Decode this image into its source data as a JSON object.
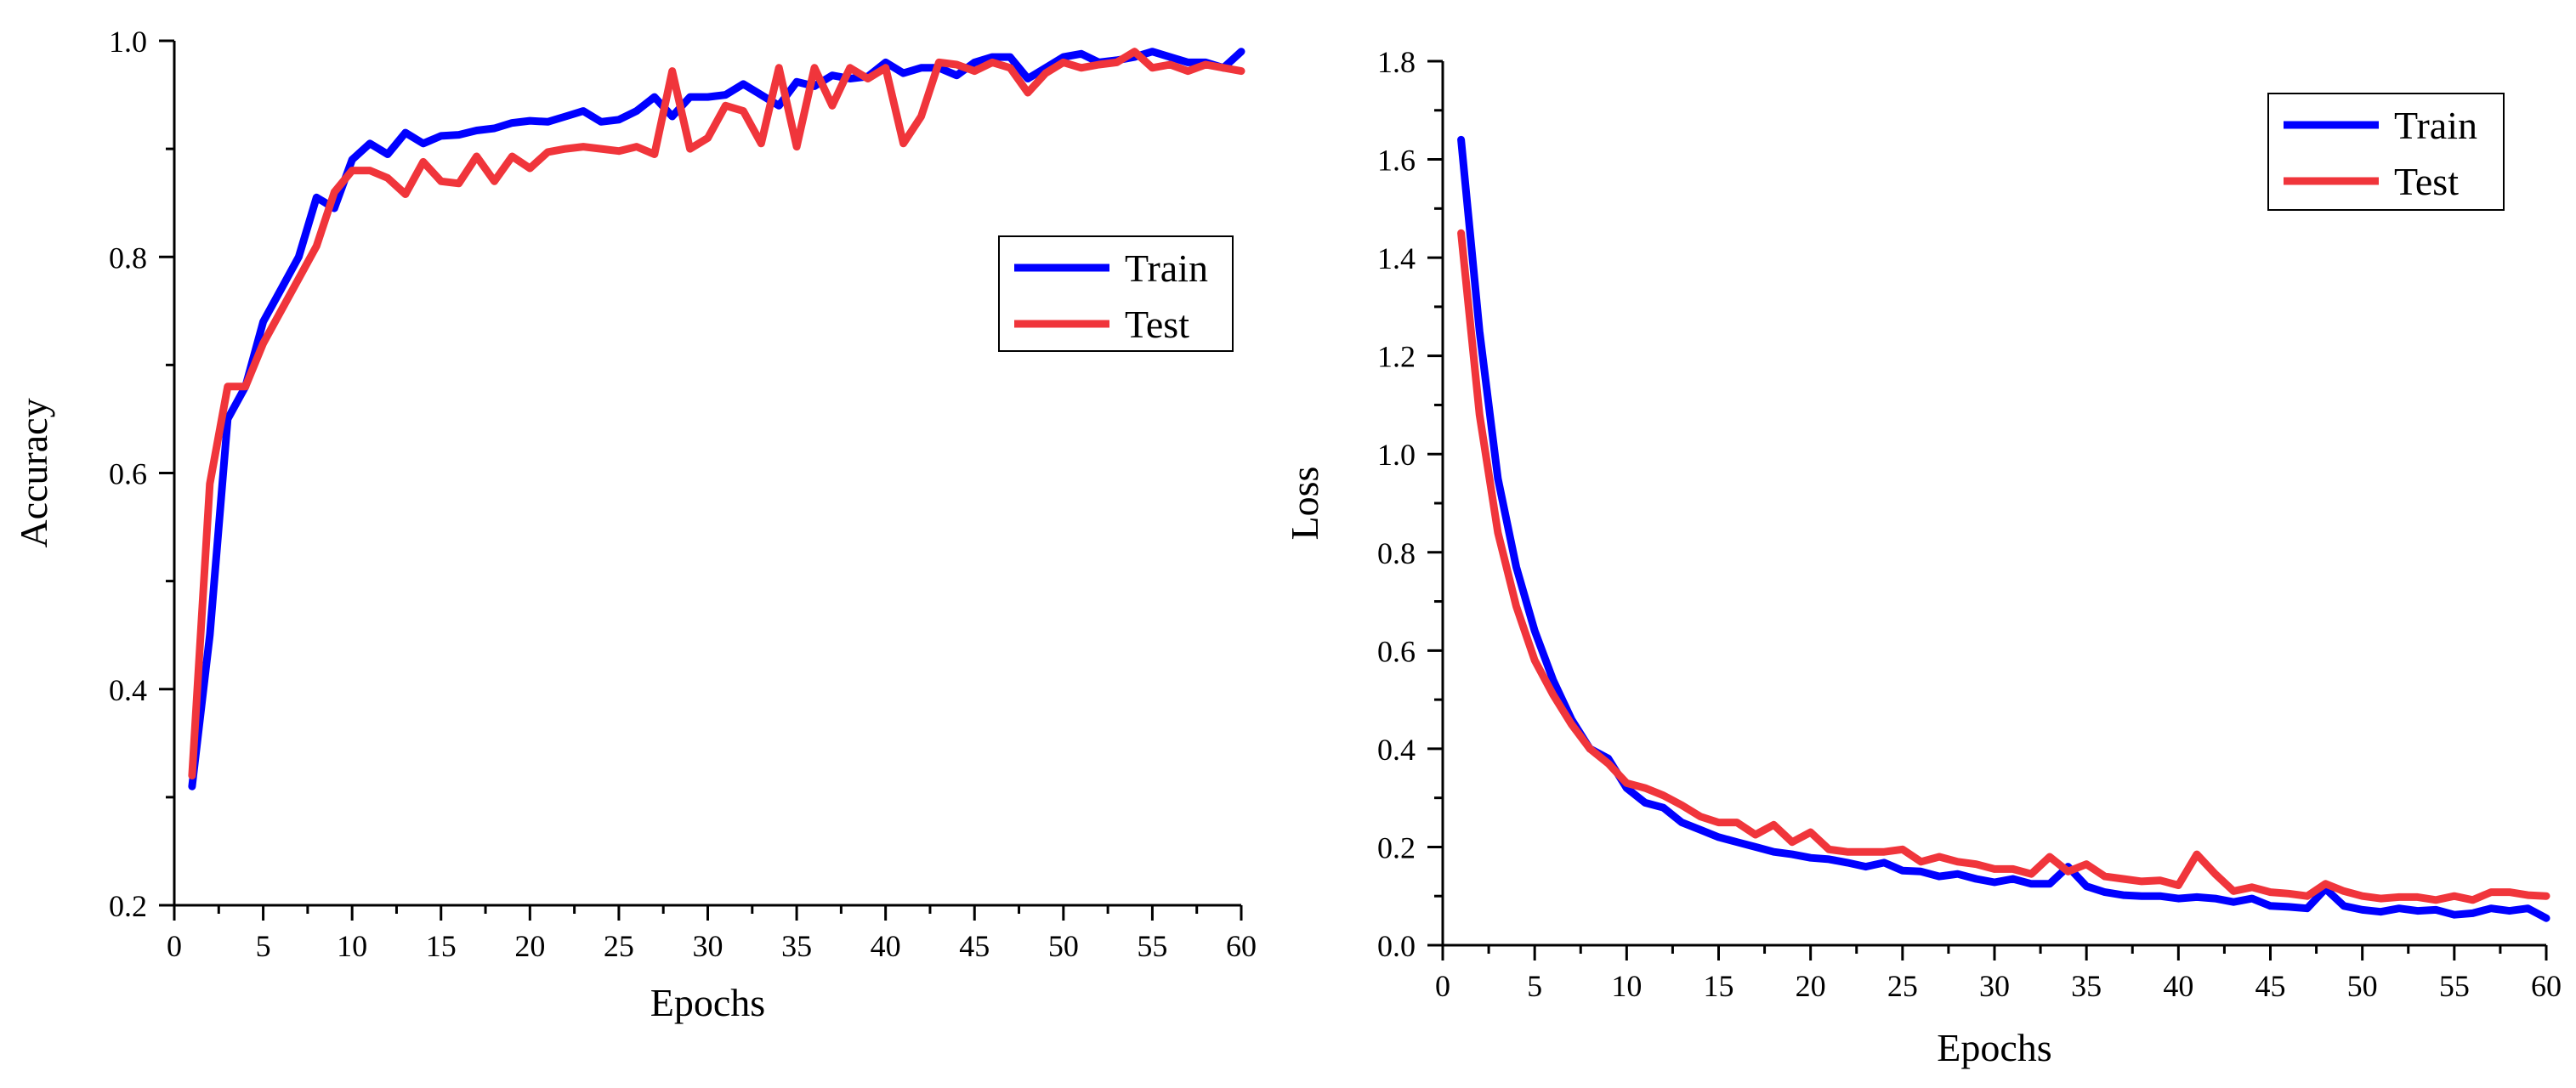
{
  "chart_data": [
    {
      "type": "line",
      "title": "",
      "xlabel": "Epochs",
      "ylabel": "Accuracy",
      "xlim": [
        0,
        60
      ],
      "ylim": [
        0.2,
        1.0
      ],
      "xticks": [
        0,
        5,
        10,
        15,
        20,
        25,
        30,
        35,
        40,
        45,
        50,
        55,
        60
      ],
      "xtick_labels": [
        "0",
        "5",
        "10",
        "15",
        "20",
        "25",
        "30",
        "35",
        "40",
        "45",
        "50",
        "55",
        "60"
      ],
      "yticks": [
        0.2,
        0.4,
        0.6,
        0.8,
        1.0
      ],
      "ytick_labels": [
        "0.2",
        "0.4",
        "0.6",
        "0.8",
        "1.0"
      ],
      "grid": false,
      "legend_position": "right-upper",
      "x": [
        1,
        2,
        3,
        4,
        5,
        6,
        7,
        8,
        9,
        10,
        11,
        12,
        13,
        14,
        15,
        16,
        17,
        18,
        19,
        20,
        21,
        22,
        23,
        24,
        25,
        26,
        27,
        28,
        29,
        30,
        31,
        32,
        33,
        34,
        35,
        36,
        37,
        38,
        39,
        40,
        41,
        42,
        43,
        44,
        45,
        46,
        47,
        48,
        49,
        50,
        51,
        52,
        53,
        54,
        55,
        56,
        57,
        58,
        59,
        60
      ],
      "series": [
        {
          "name": "Train",
          "color": "#0000ff",
          "values": [
            0.31,
            0.45,
            0.65,
            0.68,
            0.74,
            0.77,
            0.8,
            0.855,
            0.845,
            0.89,
            0.905,
            0.895,
            0.915,
            0.905,
            0.912,
            0.913,
            0.917,
            0.919,
            0.924,
            0.926,
            0.925,
            0.93,
            0.935,
            0.925,
            0.927,
            0.935,
            0.948,
            0.93,
            0.948,
            0.948,
            0.95,
            0.96,
            0.95,
            0.94,
            0.962,
            0.958,
            0.968,
            0.965,
            0.967,
            0.98,
            0.97,
            0.975,
            0.975,
            0.968,
            0.98,
            0.985,
            0.985,
            0.965,
            0.975,
            0.985,
            0.988,
            0.98,
            0.982,
            0.985,
            0.99,
            0.985,
            0.98,
            0.98,
            0.975,
            0.99
          ]
        },
        {
          "name": "Test",
          "color": "#f0353b",
          "values": [
            0.32,
            0.59,
            0.68,
            0.68,
            0.72,
            0.75,
            0.78,
            0.81,
            0.86,
            0.88,
            0.88,
            0.873,
            0.858,
            0.888,
            0.87,
            0.868,
            0.893,
            0.87,
            0.893,
            0.882,
            0.897,
            0.9,
            0.902,
            0.9,
            0.898,
            0.902,
            0.895,
            0.972,
            0.9,
            0.91,
            0.94,
            0.935,
            0.905,
            0.975,
            0.902,
            0.975,
            0.94,
            0.975,
            0.965,
            0.975,
            0.905,
            0.93,
            0.98,
            0.978,
            0.972,
            0.98,
            0.975,
            0.952,
            0.97,
            0.98,
            0.975,
            0.978,
            0.98,
            0.99,
            0.975,
            0.978,
            0.972,
            0.978,
            0.975,
            0.972
          ]
        }
      ]
    },
    {
      "type": "line",
      "title": "",
      "xlabel": "Epochs",
      "ylabel": "Loss",
      "xlim": [
        0,
        60
      ],
      "ylim": [
        0.0,
        1.8
      ],
      "xticks": [
        0,
        5,
        10,
        15,
        20,
        25,
        30,
        35,
        40,
        45,
        50,
        55,
        60
      ],
      "xtick_labels": [
        "0",
        "5",
        "10",
        "15",
        "20",
        "25",
        "30",
        "35",
        "40",
        "45",
        "50",
        "55",
        "60"
      ],
      "yticks": [
        0.0,
        0.2,
        0.4,
        0.6,
        0.8,
        1.0,
        1.2,
        1.4,
        1.6,
        1.8
      ],
      "ytick_labels": [
        "0.0",
        "0.2",
        "0.4",
        "0.6",
        "0.8",
        "1.0",
        "1.2",
        "1.4",
        "1.6",
        "1.8"
      ],
      "grid": false,
      "legend_position": "top-right",
      "x": [
        1,
        2,
        3,
        4,
        5,
        6,
        7,
        8,
        9,
        10,
        11,
        12,
        13,
        14,
        15,
        16,
        17,
        18,
        19,
        20,
        21,
        22,
        23,
        24,
        25,
        26,
        27,
        28,
        29,
        30,
        31,
        32,
        33,
        34,
        35,
        36,
        37,
        38,
        39,
        40,
        41,
        42,
        43,
        44,
        45,
        46,
        47,
        48,
        49,
        50,
        51,
        52,
        53,
        54,
        55,
        56,
        57,
        58,
        59,
        60
      ],
      "series": [
        {
          "name": "Train",
          "color": "#0000ff",
          "values": [
            1.64,
            1.25,
            0.95,
            0.77,
            0.64,
            0.54,
            0.46,
            0.4,
            0.38,
            0.32,
            0.29,
            0.28,
            0.25,
            0.235,
            0.22,
            0.21,
            0.2,
            0.19,
            0.185,
            0.178,
            0.175,
            0.168,
            0.16,
            0.168,
            0.152,
            0.15,
            0.14,
            0.145,
            0.135,
            0.128,
            0.135,
            0.125,
            0.125,
            0.16,
            0.12,
            0.108,
            0.102,
            0.1,
            0.1,
            0.095,
            0.098,
            0.095,
            0.088,
            0.095,
            0.08,
            0.078,
            0.075,
            0.115,
            0.08,
            0.072,
            0.068,
            0.075,
            0.07,
            0.072,
            0.062,
            0.065,
            0.075,
            0.07,
            0.075,
            0.055
          ]
        },
        {
          "name": "Test",
          "color": "#f0353b",
          "values": [
            1.45,
            1.08,
            0.84,
            0.69,
            0.58,
            0.51,
            0.45,
            0.4,
            0.37,
            0.33,
            0.32,
            0.305,
            0.285,
            0.262,
            0.25,
            0.25,
            0.225,
            0.245,
            0.21,
            0.23,
            0.195,
            0.19,
            0.19,
            0.19,
            0.195,
            0.17,
            0.18,
            0.17,
            0.165,
            0.155,
            0.155,
            0.145,
            0.18,
            0.15,
            0.165,
            0.14,
            0.135,
            0.13,
            0.132,
            0.122,
            0.185,
            0.145,
            0.11,
            0.118,
            0.108,
            0.105,
            0.1,
            0.125,
            0.11,
            0.1,
            0.095,
            0.098,
            0.098,
            0.092,
            0.1,
            0.092,
            0.108,
            0.108,
            0.102,
            0.1
          ]
        }
      ]
    }
  ]
}
